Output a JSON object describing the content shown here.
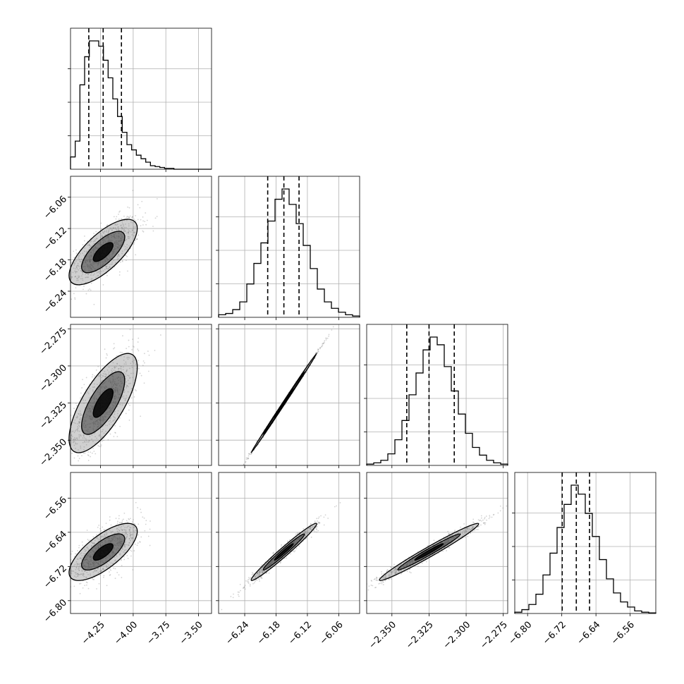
{
  "chart_data": {
    "type": "corner",
    "parameters": 4,
    "colors": {
      "axes": "#000000",
      "grid": "#b0b0b0",
      "points": "#808080",
      "contour": "#000000"
    },
    "grid": true,
    "ranges": [
      [
        -4.48,
        -3.4
      ],
      [
        -6.29,
        -6.02
      ],
      [
        -2.367,
        -2.272
      ],
      [
        -6.83,
        -6.5
      ]
    ],
    "ticks": [
      {
        "values": [
          -4.25,
          -4.0,
          -3.75,
          -3.5
        ],
        "labels": [
          "−4.25",
          "−4.00",
          "−3.75",
          "−3.50"
        ]
      },
      {
        "values": [
          -6.24,
          -6.18,
          -6.12,
          -6.06
        ],
        "labels": [
          "−6.24",
          "−6.18",
          "−6.12",
          "−6.06"
        ]
      },
      {
        "values": [
          -2.35,
          -2.325,
          -2.3,
          -2.275
        ],
        "labels": [
          "−2.350",
          "−2.325",
          "−2.300",
          "−2.275"
        ]
      },
      {
        "values": [
          -6.8,
          -6.72,
          -6.64,
          -6.56
        ],
        "labels": [
          "−6.80",
          "−6.72",
          "−6.64",
          "−6.56"
        ]
      }
    ],
    "quantiles": [
      [
        -4.34,
        -4.23,
        -4.09
      ],
      [
        -6.196,
        -6.165,
        -6.136
      ],
      [
        -2.34,
        -2.325,
        -2.308
      ],
      [
        -6.719,
        -6.686,
        -6.655
      ]
    ],
    "histograms": [
      [
        0.07,
        0.16,
        0.48,
        0.64,
        0.73,
        0.73,
        0.7,
        0.62,
        0.52,
        0.4,
        0.3,
        0.21,
        0.14,
        0.11,
        0.08,
        0.06,
        0.04,
        0.02,
        0.015,
        0.01,
        0.005,
        0.005,
        0,
        0,
        0,
        0,
        0,
        0,
        0,
        0
      ],
      [
        0.02,
        0.03,
        0.06,
        0.12,
        0.26,
        0.42,
        0.58,
        0.75,
        0.92,
        1.0,
        0.88,
        0.73,
        0.56,
        0.38,
        0.22,
        0.12,
        0.07,
        0.04,
        0.02,
        0.01
      ],
      [
        0.01,
        0.02,
        0.04,
        0.09,
        0.2,
        0.35,
        0.55,
        0.72,
        0.9,
        1.0,
        0.94,
        0.77,
        0.58,
        0.4,
        0.25,
        0.14,
        0.08,
        0.04,
        0.02,
        0.01
      ],
      [
        0.01,
        0.03,
        0.07,
        0.15,
        0.3,
        0.47,
        0.67,
        0.85,
        1.0,
        0.93,
        0.78,
        0.6,
        0.42,
        0.27,
        0.16,
        0.09,
        0.05,
        0.02,
        0.01,
        0.005
      ]
    ],
    "scatter_pairs": [
      {
        "row": 1,
        "col": 0,
        "corr": 0.72
      },
      {
        "row": 2,
        "col": 0,
        "corr": 0.72
      },
      {
        "row": 2,
        "col": 1,
        "corr": 0.999
      },
      {
        "row": 3,
        "col": 0,
        "corr": 0.72
      },
      {
        "row": 3,
        "col": 1,
        "corr": 0.98
      },
      {
        "row": 3,
        "col": 2,
        "corr": 0.98
      }
    ]
  }
}
